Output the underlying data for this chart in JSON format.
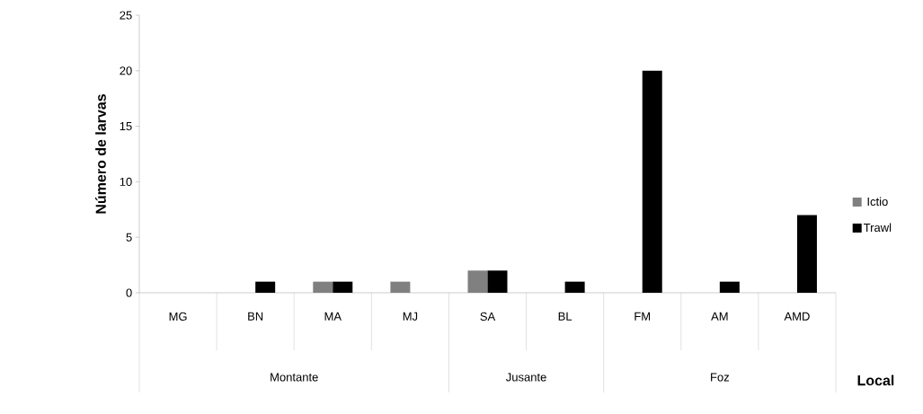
{
  "chart_data": {
    "type": "bar",
    "ylabel": "Número de larvas",
    "xlabel": "Local",
    "categories": [
      "MG",
      "BN",
      "MA",
      "MJ",
      "SA",
      "BL",
      "FM",
      "AM",
      "AMD"
    ],
    "series": [
      {
        "name": "Ictio",
        "color": "#808080",
        "values": [
          0,
          0,
          1,
          1,
          2,
          0,
          0,
          0,
          0
        ]
      },
      {
        "name": "Trawl",
        "color": "#000000",
        "values": [
          0,
          1,
          1,
          0,
          2,
          1,
          20,
          1,
          7
        ]
      }
    ],
    "annotations": [
      "Montante",
      "Jusante",
      "Foz"
    ],
    "ylim": [
      0,
      25
    ],
    "yticks": [
      0,
      5,
      10,
      15,
      20,
      25
    ],
    "grid": false,
    "legend": "right"
  }
}
